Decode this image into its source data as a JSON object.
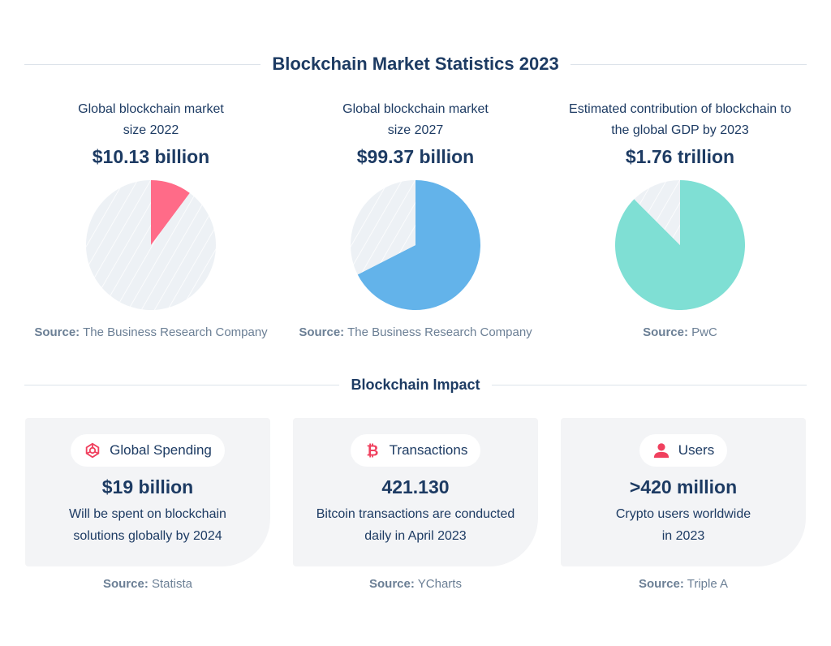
{
  "title": "Blockchain Market Statistics 2023",
  "stats": [
    {
      "label_line1": "Global blockchain market",
      "label_line2": "size 2022",
      "value": "$10.13 billion",
      "source_prefix": "Source:",
      "source": "The Business Research Company"
    },
    {
      "label_line1": "Global blockchain market",
      "label_line2": "size 2027",
      "value": "$99.37 billion",
      "source_prefix": "Source:",
      "source": "The Business Research Company"
    },
    {
      "label_line1": "Estimated contribution of blockchain to",
      "label_line2": "the global GDP by 2023",
      "value": "$1.76 trillion",
      "source_prefix": "Source:",
      "source": "PwC"
    }
  ],
  "chart_data": [
    {
      "type": "pie",
      "slices": [
        {
          "value": 0.102,
          "color": "#ff6b88"
        },
        {
          "value": 0.898,
          "color": "#edf1f5"
        }
      ]
    },
    {
      "type": "pie",
      "slices": [
        {
          "value": 0.675,
          "color": "#63b3ea"
        },
        {
          "value": 0.325,
          "color": "#edf1f5"
        }
      ]
    },
    {
      "type": "pie",
      "slices": [
        {
          "value": 0.875,
          "color": "#7fdfd4"
        },
        {
          "value": 0.125,
          "color": "#edf1f5"
        }
      ]
    }
  ],
  "impact_title": "Blockchain Impact",
  "cards": [
    {
      "icon": "network-icon",
      "label": "Global Spending",
      "value": "$19 billion",
      "desc_line1": "Will be spent on blockchain",
      "desc_line2": "solutions globally by 2024",
      "source_prefix": "Source:",
      "source": "Statista"
    },
    {
      "icon": "bitcoin-icon",
      "label": "Transactions",
      "value": "421.130",
      "desc_line1": "Bitcoin transactions are conducted",
      "desc_line2": "daily in April 2023",
      "source_prefix": "Source:",
      "source": "YCharts"
    },
    {
      "icon": "user-icon",
      "label": "Users",
      "value": ">420 million",
      "desc_line1": "Crypto users worldwide",
      "desc_line2": "in 2023",
      "source_prefix": "Source:",
      "source": "Triple A"
    }
  ],
  "colors": {
    "text": "#1d3b63",
    "accent_icon": "#f0405e",
    "card_bg": "#f3f4f6"
  }
}
